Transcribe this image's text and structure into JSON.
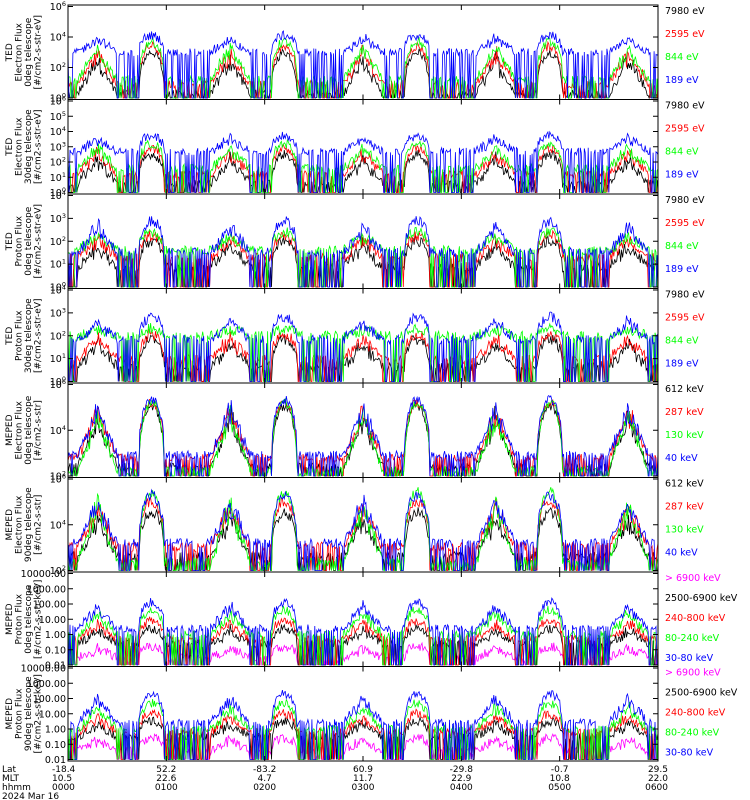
{
  "colors": {
    "blue": "#0000ff",
    "red": "#ff0000",
    "green": "#00ff00",
    "black": "#000000",
    "magenta": "#ff00ff"
  },
  "chart_data": [
    {
      "type": "line",
      "ylabel": [
        "TED",
        "Electron Flux",
        "0deg telescope",
        "[#/cm2-s-str-eV]"
      ],
      "y_scale": "log",
      "ylim": [
        1,
        1000000
      ],
      "y_ticks": [
        "10^0",
        "10^2",
        "10^4",
        "10^6"
      ],
      "legend_position": "right",
      "series": [
        {
          "name": "7980 eV",
          "color": "black",
          "peak_log": 3.0,
          "bg_log": 0.3
        },
        {
          "name": "2595 eV",
          "color": "red",
          "peak_log": 3.4,
          "bg_log": 0.9
        },
        {
          "name": "844 eV",
          "color": "green",
          "peak_log": 3.7,
          "bg_log": 1.2
        },
        {
          "name": "189 eV",
          "color": "blue",
          "peak_log": 4.1,
          "bg_log": 3.0
        }
      ]
    },
    {
      "type": "line",
      "ylabel": [
        "TED",
        "Electron Flux",
        "30deg telescope",
        "[#/cm2-s-str-eV]"
      ],
      "y_scale": "log",
      "ylim": [
        1,
        1000000
      ],
      "y_ticks": [
        "10^0",
        "10^1",
        "10^2",
        "10^3",
        "10^4",
        "10^5",
        "10^6"
      ],
      "legend_position": "right",
      "series": [
        {
          "name": "7980 eV",
          "color": "black",
          "peak_log": 2.5,
          "bg_log": 0.6
        },
        {
          "name": "2595 eV",
          "color": "red",
          "peak_log": 2.9,
          "bg_log": 1.2
        },
        {
          "name": "844 eV",
          "color": "green",
          "peak_log": 3.2,
          "bg_log": 1.6
        },
        {
          "name": "189 eV",
          "color": "blue",
          "peak_log": 3.7,
          "bg_log": 2.7
        }
      ]
    },
    {
      "type": "line",
      "ylabel": [
        "TED",
        "Proton Flux",
        "0deg telescope",
        "[#/cm2-s-str-eV]"
      ],
      "y_scale": "log",
      "ylim": [
        1,
        100000
      ],
      "y_ticks": [
        "10^0",
        "10^1",
        "10^2",
        "10^3",
        "10^4"
      ],
      "legend_position": "right",
      "series": [
        {
          "name": "7980 eV",
          "color": "black",
          "peak_log": 2.5,
          "bg_log": 1.1
        },
        {
          "name": "2595 eV",
          "color": "red",
          "peak_log": 2.8,
          "bg_log": 1.6
        },
        {
          "name": "844 eV",
          "color": "green",
          "peak_log": 3.0,
          "bg_log": 2.0
        },
        {
          "name": "189 eV",
          "color": "blue",
          "peak_log": 3.6,
          "bg_log": 1.9
        }
      ]
    },
    {
      "type": "line",
      "ylabel": [
        "TED",
        "Proton Flux",
        "30deg telescope",
        "[#/cm2-s-str-eV]"
      ],
      "y_scale": "log",
      "ylim": [
        1,
        100000
      ],
      "y_ticks": [
        "10^0",
        "10^1",
        "10^2",
        "10^3",
        "10^4"
      ],
      "legend_position": "right",
      "series": [
        {
          "name": "7980 eV",
          "color": "black",
          "peak_log": 2.3,
          "bg_log": 0.8
        },
        {
          "name": "2595 eV",
          "color": "red",
          "peak_log": 2.6,
          "bg_log": 1.2
        },
        {
          "name": "844 eV",
          "color": "green",
          "peak_log": 2.9,
          "bg_log": 2.5
        },
        {
          "name": "189 eV",
          "color": "blue",
          "peak_log": 3.5,
          "bg_log": 2.3
        }
      ]
    },
    {
      "type": "line",
      "ylabel": [
        "MEPED",
        "Electron Flux",
        "0deg telescope",
        "[#/cm2-s-str]"
      ],
      "y_scale": "log",
      "ylim": [
        10,
        10000000
      ],
      "y_ticks": [
        "10^2",
        "10^4",
        "10^6"
      ],
      "legend_position": "right",
      "series": [
        {
          "name": "612 keV",
          "color": "black",
          "peak_log": 5.6,
          "bg_log": 1.6
        },
        {
          "name": "287 keV",
          "color": "red",
          "peak_log": 5.8,
          "bg_log": 2.2
        },
        {
          "name": "130 keV",
          "color": "green",
          "peak_log": 5.8,
          "bg_log": 1.4
        },
        {
          "name": "40 keV",
          "color": "blue",
          "peak_log": 6.0,
          "bg_log": 2.4
        }
      ]
    },
    {
      "type": "line",
      "ylabel": [
        "MEPED",
        "Electron Flux",
        "90deg telescope",
        "[#/cm2-s-str]"
      ],
      "y_scale": "log",
      "ylim": [
        10,
        1000000
      ],
      "y_ticks": [
        "10^2",
        "10^4",
        "10^6"
      ],
      "legend_position": "right",
      "series": [
        {
          "name": "612 keV",
          "color": "black",
          "peak_log": 4.2,
          "bg_log": 1.8
        },
        {
          "name": "287 keV",
          "color": "red",
          "peak_log": 4.8,
          "bg_log": 2.3
        },
        {
          "name": "130 keV",
          "color": "green",
          "peak_log": 5.3,
          "bg_log": 1.5
        },
        {
          "name": "40 keV",
          "color": "blue",
          "peak_log": 5.1,
          "bg_log": 2.5
        }
      ]
    },
    {
      "type": "line",
      "ylabel": [
        "MEPED",
        "Proton Flux",
        "0deg telescope",
        "[#/cm2-s-str-keV]"
      ],
      "y_scale": "log",
      "ylim": [
        0.01,
        10000
      ],
      "y_ticks": [
        "0.01",
        "0.10",
        "1.00",
        "10.00",
        "100.00",
        "1000.00",
        "10000.00"
      ],
      "legend_position": "right",
      "series": [
        {
          "name": "> 6900 keV",
          "color": "magenta",
          "peak_log": -0.8,
          "bg_log": -1.5
        },
        {
          "name": "2500-6900 keV",
          "color": "black",
          "peak_log": 0.4,
          "bg_log": -0.6
        },
        {
          "name": "240-800 keV",
          "color": "red",
          "peak_log": 0.9,
          "bg_log": -0.3
        },
        {
          "name": "80-240 keV",
          "color": "green",
          "peak_log": 1.6,
          "bg_log": 0.0
        },
        {
          "name": "30-80 keV",
          "color": "blue",
          "peak_log": 2.1,
          "bg_log": 0.4
        }
      ]
    },
    {
      "type": "line",
      "ylabel": [
        "MEPED",
        "Proton Flux",
        "90deg telescope",
        "[#/cm2-s-str-keV]"
      ],
      "y_scale": "log",
      "ylim": [
        0.01,
        10000
      ],
      "y_ticks": [
        "0.01",
        "0.10",
        "1.00",
        "10.00",
        "100.00",
        "1000.00",
        "10000.00"
      ],
      "legend_position": "right",
      "series": [
        {
          "name": "> 6900 keV",
          "color": "magenta",
          "peak_log": -0.6,
          "bg_log": -1.4
        },
        {
          "name": "2500-6900 keV",
          "color": "black",
          "peak_log": 0.5,
          "bg_log": -0.5
        },
        {
          "name": "240-800 keV",
          "color": "red",
          "peak_log": 1.0,
          "bg_log": -0.2
        },
        {
          "name": "80-240 keV",
          "color": "green",
          "peak_log": 1.7,
          "bg_log": 0.0
        },
        {
          "name": "30-80 keV",
          "color": "blue",
          "peak_log": 2.3,
          "bg_log": 0.4
        }
      ]
    }
  ],
  "pass_windows": [
    {
      "center": 0.3,
      "width": 0.2,
      "kind": "flare"
    },
    {
      "center": 0.85,
      "width": 0.13,
      "kind": "dome"
    },
    {
      "center": 1.65,
      "width": 0.2,
      "kind": "flare"
    },
    {
      "center": 2.2,
      "width": 0.13,
      "kind": "dome"
    },
    {
      "center": 3.0,
      "width": 0.2,
      "kind": "flare"
    },
    {
      "center": 3.55,
      "width": 0.13,
      "kind": "dome"
    },
    {
      "center": 4.35,
      "width": 0.2,
      "kind": "flare"
    },
    {
      "center": 4.9,
      "width": 0.13,
      "kind": "dome"
    },
    {
      "center": 5.7,
      "width": 0.2,
      "kind": "flare"
    }
  ],
  "x_axis": {
    "row_labels": [
      "Lat",
      "MLT",
      "hhmm",
      "2024 Mar 16"
    ],
    "xlim_hours": [
      0,
      6
    ],
    "ticks": [
      {
        "lat": "-18.4",
        "mlt": "10.5",
        "time": "0000"
      },
      {
        "lat": "52.2",
        "mlt": "22.6",
        "time": "0100"
      },
      {
        "lat": "-83.2",
        "mlt": "4.7",
        "time": "0200"
      },
      {
        "lat": "60.9",
        "mlt": "11.7",
        "time": "0300"
      },
      {
        "lat": "-29.8",
        "mlt": "22.9",
        "time": "0400"
      },
      {
        "lat": "-0.7",
        "mlt": "10.8",
        "time": "0500"
      },
      {
        "lat": "29.5",
        "mlt": "22.0",
        "time": "0600"
      }
    ]
  }
}
